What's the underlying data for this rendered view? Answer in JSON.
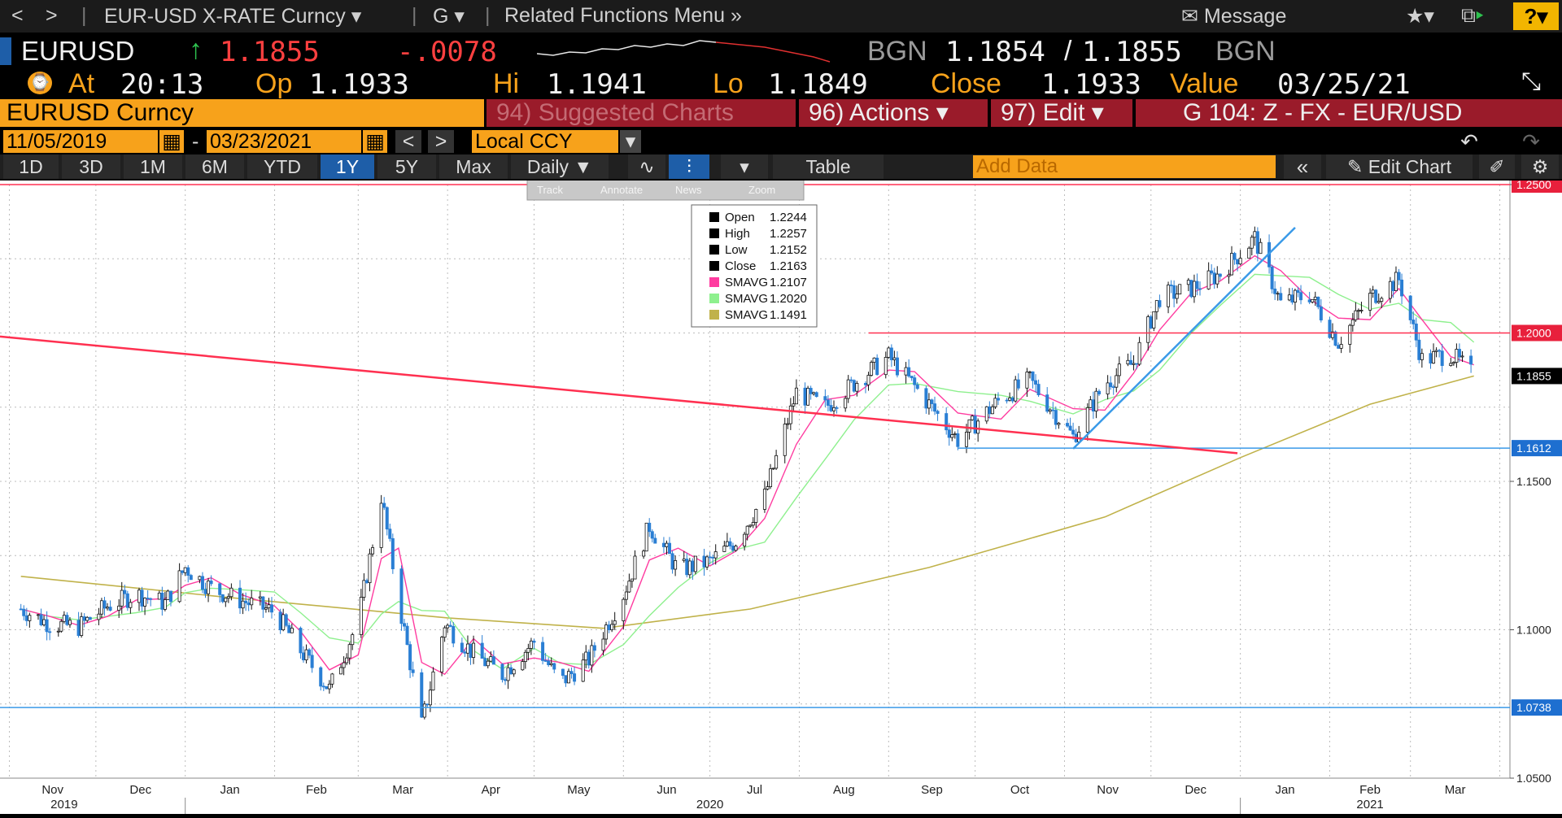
{
  "topnav": {
    "back": "<",
    "forward": ">",
    "security": "EUR-USD X-RATE Curncy",
    "function": "G",
    "related": "Related Functions Menu",
    "message": "Message",
    "help": "?"
  },
  "quote": {
    "ticker": "EURUSD",
    "last": "1.1855",
    "change": "-.0078",
    "bid_source": "BGN",
    "bid": "1.1854",
    "slash": "/",
    "ask": "1.1855",
    "ask_source": "BGN",
    "at_label": "At",
    "time": "20:13",
    "open_label": "Op",
    "open": "1.1933",
    "high_label": "Hi",
    "high": "1.1941",
    "low_label": "Lo",
    "low": "1.1849",
    "close_label": "Close",
    "close": "1.1933",
    "value_label": "Value",
    "value_date": "03/25/21"
  },
  "tickerbar": {
    "security": "EURUSD Curncy",
    "suggested_num": "94)",
    "suggested": "Suggested Charts",
    "actions_num": "96)",
    "actions": "Actions",
    "edit_num": "97)",
    "edit": "Edit",
    "chart_id": "G 104: Z - FX - EUR/USD"
  },
  "daterow": {
    "start": "11/05/2019",
    "dash": "-",
    "end": "03/23/2021",
    "currency": "Local CCY"
  },
  "periods": {
    "items": [
      "1D",
      "3D",
      "1M",
      "6M",
      "YTD",
      "1Y",
      "5Y",
      "Max"
    ],
    "active": "1Y",
    "frequency": "Daily",
    "table": "Table",
    "add_data_placeholder": "Add Data",
    "edit_chart": "Edit Chart"
  },
  "chart_toolbar": [
    "Track",
    "Annotate",
    "News",
    "Zoom"
  ],
  "colors": {
    "up": "#f2f2f2",
    "down": "#2a7fd4",
    "sma_fast": "#ff3ca0",
    "sma_mid": "#8ef08e",
    "sma_slow": "#c0b24a",
    "red_line": "#ff3050",
    "blue_line": "#3a9ae8"
  },
  "chart_data": {
    "type": "line",
    "title": "",
    "ylim": [
      1.05,
      1.25
    ],
    "y_ticks": [
      "1.2500",
      "1.1500",
      "1.1000",
      "1.0500"
    ],
    "month_labels": [
      "Nov",
      "Dec",
      "Jan",
      "Feb",
      "Mar",
      "Apr",
      "May",
      "Jun",
      "Jul",
      "Aug",
      "Sep",
      "Oct",
      "Nov",
      "Dec",
      "Jan",
      "Feb",
      "Mar"
    ],
    "year_labels": [
      "2019",
      "2020",
      "2021"
    ],
    "price_tags": [
      {
        "value": 1.25,
        "label": "1.2500",
        "color": "red"
      },
      {
        "value": 1.2,
        "label": "1.2000",
        "color": "red"
      },
      {
        "value": 1.1855,
        "label": "1.1855",
        "color": "black"
      },
      {
        "value": 1.1612,
        "label": "1.1612",
        "color": "blue"
      },
      {
        "value": 1.0738,
        "label": "1.0738",
        "color": "blue"
      }
    ],
    "legend": [
      {
        "name": "Open",
        "value": "1.2244"
      },
      {
        "name": "High",
        "value": "1.2257"
      },
      {
        "name": "Low",
        "value": "1.2152"
      },
      {
        "name": "Close",
        "value": "1.2163"
      },
      {
        "name": "SMAVG",
        "value": "1.2107"
      },
      {
        "name": "SMAVG",
        "value": "1.2020"
      },
      {
        "name": "SMAVG",
        "value": "1.1491"
      }
    ],
    "legend_placement": "top-center",
    "close_series": [
      {
        "x": "2019-11-05",
        "y": 1.107
      },
      {
        "x": "2019-11-15",
        "y": 1.102
      },
      {
        "x": "2019-11-25",
        "y": 1.101
      },
      {
        "x": "2019-12-05",
        "y": 1.108
      },
      {
        "x": "2019-12-15",
        "y": 1.112
      },
      {
        "x": "2019-12-25",
        "y": 1.109
      },
      {
        "x": "2020-01-01",
        "y": 1.121
      },
      {
        "x": "2020-01-10",
        "y": 1.114
      },
      {
        "x": "2020-01-20",
        "y": 1.11
      },
      {
        "x": "2020-02-01",
        "y": 1.106
      },
      {
        "x": "2020-02-10",
        "y": 1.093
      },
      {
        "x": "2020-02-20",
        "y": 1.08
      },
      {
        "x": "2020-03-01",
        "y": 1.103
      },
      {
        "x": "2020-03-09",
        "y": 1.145
      },
      {
        "x": "2020-03-15",
        "y": 1.11
      },
      {
        "x": "2020-03-23",
        "y": 1.068
      },
      {
        "x": "2020-03-31",
        "y": 1.102
      },
      {
        "x": "2020-04-10",
        "y": 1.092
      },
      {
        "x": "2020-04-20",
        "y": 1.085
      },
      {
        "x": "2020-05-01",
        "y": 1.096
      },
      {
        "x": "2020-05-10",
        "y": 1.082
      },
      {
        "x": "2020-05-20",
        "y": 1.09
      },
      {
        "x": "2020-06-01",
        "y": 1.112
      },
      {
        "x": "2020-06-10",
        "y": 1.135
      },
      {
        "x": "2020-06-20",
        "y": 1.12
      },
      {
        "x": "2020-07-01",
        "y": 1.123
      },
      {
        "x": "2020-07-10",
        "y": 1.13
      },
      {
        "x": "2020-07-20",
        "y": 1.145
      },
      {
        "x": "2020-07-31",
        "y": 1.18
      },
      {
        "x": "2020-08-10",
        "y": 1.175
      },
      {
        "x": "2020-08-20",
        "y": 1.183
      },
      {
        "x": "2020-09-01",
        "y": 1.192
      },
      {
        "x": "2020-09-10",
        "y": 1.182
      },
      {
        "x": "2020-09-25",
        "y": 1.164
      },
      {
        "x": "2020-10-10",
        "y": 1.178
      },
      {
        "x": "2020-10-20",
        "y": 1.184
      },
      {
        "x": "2020-11-04",
        "y": 1.165
      },
      {
        "x": "2020-11-15",
        "y": 1.183
      },
      {
        "x": "2020-11-25",
        "y": 1.19
      },
      {
        "x": "2020-12-04",
        "y": 1.212
      },
      {
        "x": "2020-12-15",
        "y": 1.215
      },
      {
        "x": "2020-12-25",
        "y": 1.22
      },
      {
        "x": "2021-01-06",
        "y": 1.232
      },
      {
        "x": "2021-01-15",
        "y": 1.21
      },
      {
        "x": "2021-01-25",
        "y": 1.213
      },
      {
        "x": "2021-02-04",
        "y": 1.197
      },
      {
        "x": "2021-02-15",
        "y": 1.212
      },
      {
        "x": "2021-02-25",
        "y": 1.218
      },
      {
        "x": "2021-03-05",
        "y": 1.191
      },
      {
        "x": "2021-03-15",
        "y": 1.193
      },
      {
        "x": "2021-03-23",
        "y": 1.1855
      }
    ],
    "sma_slow_series": [
      {
        "x": "2019-11-05",
        "y": 1.118
      },
      {
        "x": "2020-01-15",
        "y": 1.111
      },
      {
        "x": "2020-04-01",
        "y": 1.104
      },
      {
        "x": "2020-05-25",
        "y": 1.1005
      },
      {
        "x": "2020-07-15",
        "y": 1.107
      },
      {
        "x": "2020-09-15",
        "y": 1.121
      },
      {
        "x": "2020-11-15",
        "y": 1.138
      },
      {
        "x": "2021-01-01",
        "y": 1.158
      },
      {
        "x": "2021-02-15",
        "y": 1.176
      },
      {
        "x": "2021-03-23",
        "y": 1.1855
      }
    ]
  }
}
